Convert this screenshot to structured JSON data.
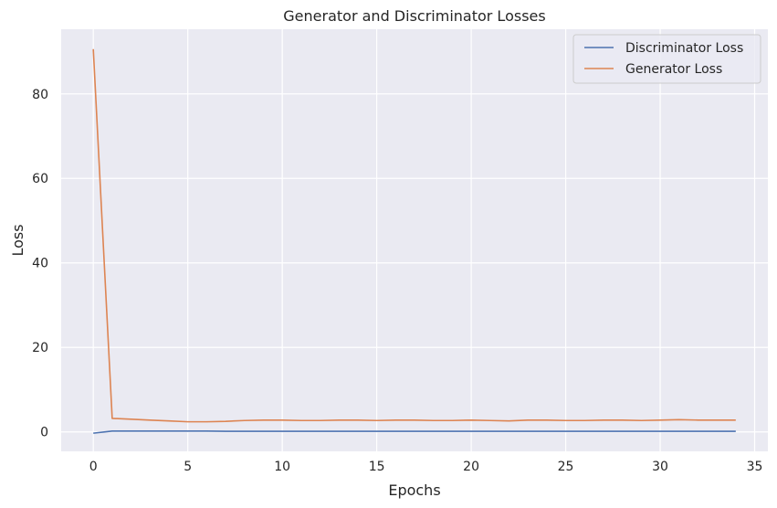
{
  "chart_data": {
    "type": "line",
    "title": "Generator and Discriminator Losses",
    "xlabel": "Epochs",
    "ylabel": "Loss",
    "xlim": [
      -1.7,
      35.7
    ],
    "ylim": [
      -4.6,
      95.3
    ],
    "xticks": [
      0,
      5,
      10,
      15,
      20,
      25,
      30,
      35
    ],
    "yticks": [
      0,
      20,
      40,
      60,
      80
    ],
    "grid": true,
    "legend_position": "top-right",
    "x": [
      0,
      1,
      2,
      3,
      4,
      5,
      6,
      7,
      8,
      9,
      10,
      11,
      12,
      13,
      14,
      15,
      16,
      17,
      18,
      19,
      20,
      21,
      22,
      23,
      24,
      25,
      26,
      27,
      28,
      29,
      30,
      31,
      32,
      33,
      34
    ],
    "series": [
      {
        "name": "Discriminator Loss",
        "color": "#4c72b0",
        "values": [
          -0.3,
          0.2,
          0.2,
          0.2,
          0.2,
          0.2,
          0.2,
          0.15,
          0.15,
          0.15,
          0.15,
          0.15,
          0.15,
          0.15,
          0.15,
          0.15,
          0.15,
          0.15,
          0.15,
          0.15,
          0.15,
          0.15,
          0.15,
          0.15,
          0.15,
          0.15,
          0.15,
          0.15,
          0.15,
          0.15,
          0.15,
          0.15,
          0.15,
          0.15,
          0.15
        ]
      },
      {
        "name": "Generator Loss",
        "color": "#dd8452",
        "values": [
          90.6,
          3.2,
          3.0,
          2.8,
          2.6,
          2.4,
          2.4,
          2.5,
          2.7,
          2.8,
          2.8,
          2.7,
          2.7,
          2.8,
          2.8,
          2.7,
          2.8,
          2.8,
          2.7,
          2.7,
          2.8,
          2.7,
          2.6,
          2.8,
          2.8,
          2.7,
          2.7,
          2.8,
          2.8,
          2.7,
          2.8,
          2.9,
          2.8,
          2.8,
          2.8
        ]
      }
    ]
  }
}
